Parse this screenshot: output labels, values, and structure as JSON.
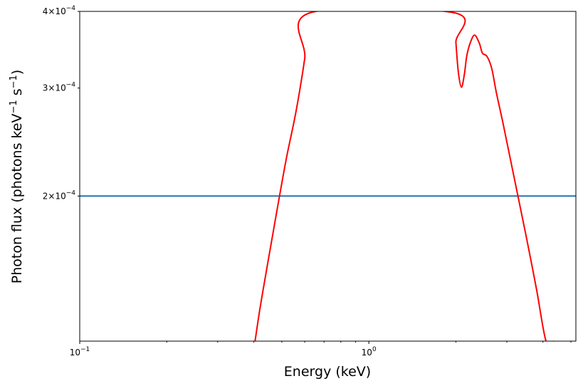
{
  "chart_data": {
    "type": "line",
    "xlabel": "Energy (keV)",
    "ylabel_main": "Photon flux (photons keV",
    "ylabel_exp": "−1",
    "ylabel_mid": " s",
    "ylabel_end": ")",
    "xscale": "log",
    "yscale": "log",
    "xlim": [
      0.1,
      5.2
    ],
    "ylim": [
      0.000116,
      0.0004
    ],
    "grid": false,
    "x_ticks": [
      {
        "value": 0.1,
        "base": "10",
        "exp": "−1"
      },
      {
        "value": 1,
        "base": "10",
        "exp": "0"
      }
    ],
    "y_ticks": [
      {
        "value": 0.0002,
        "mant": "2",
        "exp": "−4"
      },
      {
        "value": 0.0003,
        "mant": "3",
        "exp": "−4"
      },
      {
        "value": 0.0004,
        "mant": "4",
        "exp": "−4"
      }
    ],
    "series": [
      {
        "color": "#1f77b4",
        "style": "horizontal",
        "x": [
          0.1,
          5.2
        ],
        "y": [
          0.0002,
          0.0002
        ]
      },
      {
        "color": "#ff0000",
        "x": [
          0.404,
          0.42,
          0.44,
          0.46,
          0.49,
          0.52,
          0.56,
          0.6,
          0.627,
          1.97,
          2.0,
          2.04,
          2.09,
          2.14,
          2.18,
          2.24,
          2.32,
          2.41,
          2.47,
          2.56,
          2.66,
          2.76,
          2.9,
          3.05,
          3.25,
          3.5,
          3.8,
          4.1,
          4.36
        ],
        "y": [
          0.000116,
          0.000131,
          0.000149,
          0.000168,
          0.000199,
          0.000232,
          0.000275,
          0.000335,
          0.000398,
          0.000398,
          0.000356,
          0.000318,
          0.000301,
          0.000316,
          0.000338,
          0.000355,
          0.000366,
          0.000355,
          0.000342,
          0.000338,
          0.000323,
          0.000295,
          0.000265,
          0.000236,
          0.000204,
          0.000172,
          0.000141,
          0.000116,
          0.000116
        ]
      }
    ]
  }
}
